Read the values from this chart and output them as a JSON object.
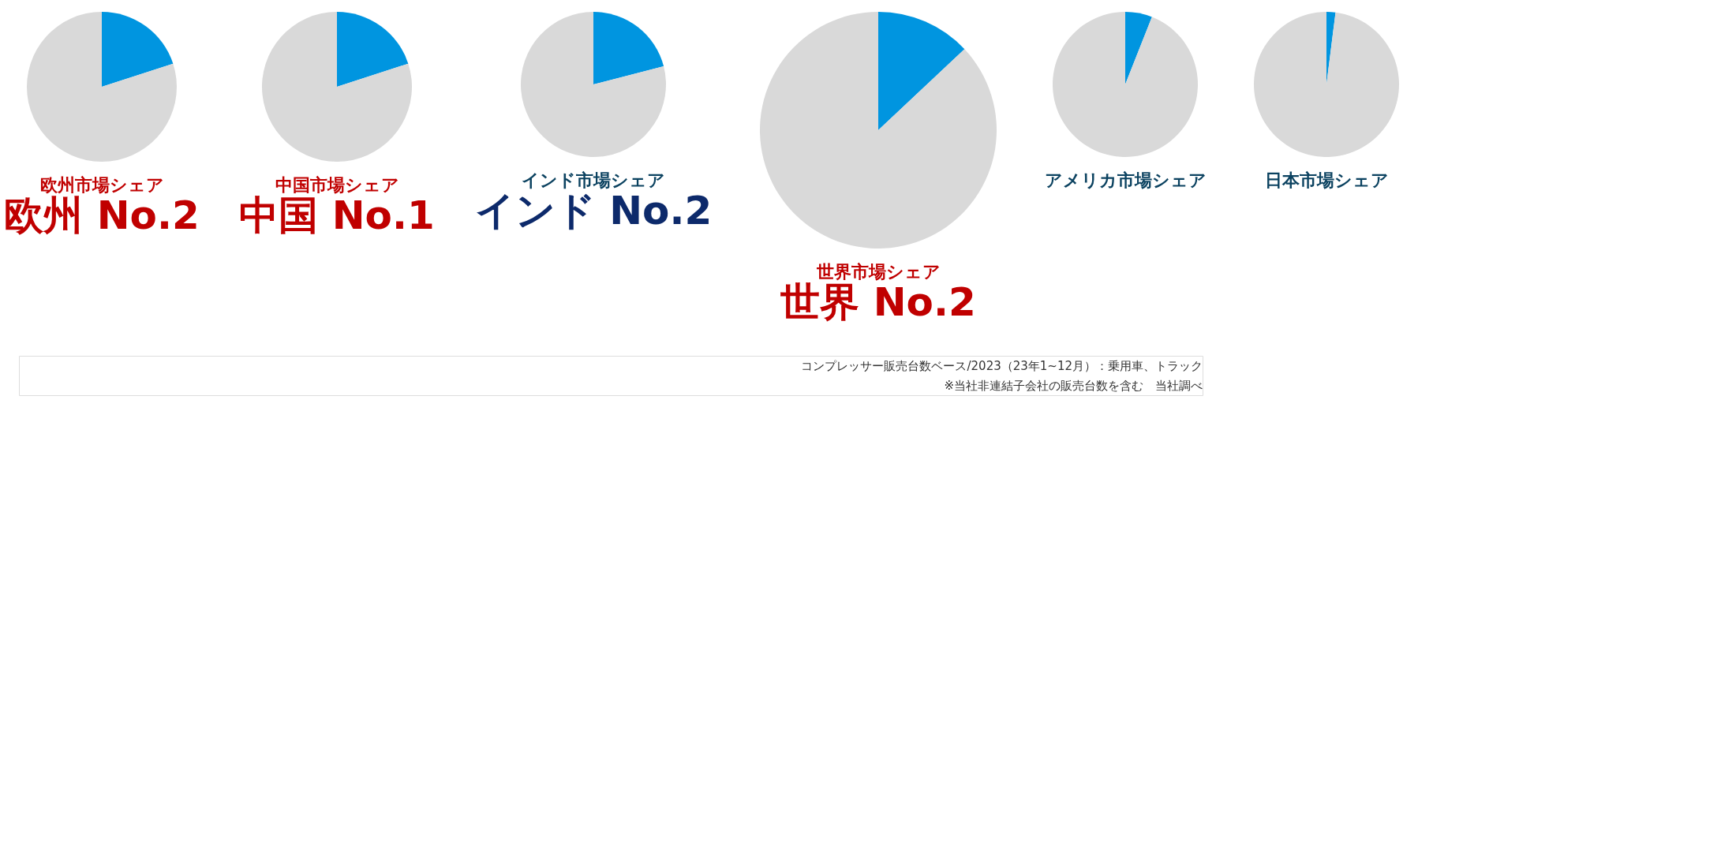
{
  "chart_data": [
    {
      "type": "pie",
      "title": "欧州市場シェア",
      "subtitle": "欧州 No.2",
      "categories": [
        null,
        null
      ],
      "values": [
        20,
        80
      ],
      "colors": [
        "#0095e0",
        "#d9d9d9"
      ]
    },
    {
      "type": "pie",
      "title": "中国市場シェア",
      "subtitle": "中国 No.1",
      "categories": [
        null,
        null
      ],
      "values": [
        20,
        80
      ],
      "colors": [
        "#0095e0",
        "#d9d9d9"
      ]
    },
    {
      "type": "pie",
      "title": "インド市場シェア",
      "subtitle": "インド No.2",
      "categories": [
        null,
        null
      ],
      "values": [
        21,
        79
      ],
      "colors": [
        "#0095e0",
        "#d9d9d9"
      ]
    },
    {
      "type": "pie",
      "title": "世界市場シェア",
      "subtitle": "世界 No.2",
      "categories": [
        null,
        null
      ],
      "values": [
        13,
        87
      ],
      "colors": [
        "#0095e0",
        "#d9d9d9"
      ]
    },
    {
      "type": "pie",
      "title": "アメリカ市場シェア",
      "categories": [
        null,
        null
      ],
      "values": [
        6,
        94
      ],
      "colors": [
        "#0095e0",
        "#d9d9d9"
      ]
    },
    {
      "type": "pie",
      "title": "日本市場シェア",
      "categories": [
        null,
        null
      ],
      "values": [
        2,
        98
      ],
      "colors": [
        "#0095e0",
        "#d9d9d9"
      ],
      "annotations": [
        "コンプレッサー販売台数ベース/2023（23年1~12月）：乗用車、トラック",
        "※当社非連結子会社の販売台数を含む　当社調べ"
      ]
    }
  ]
}
